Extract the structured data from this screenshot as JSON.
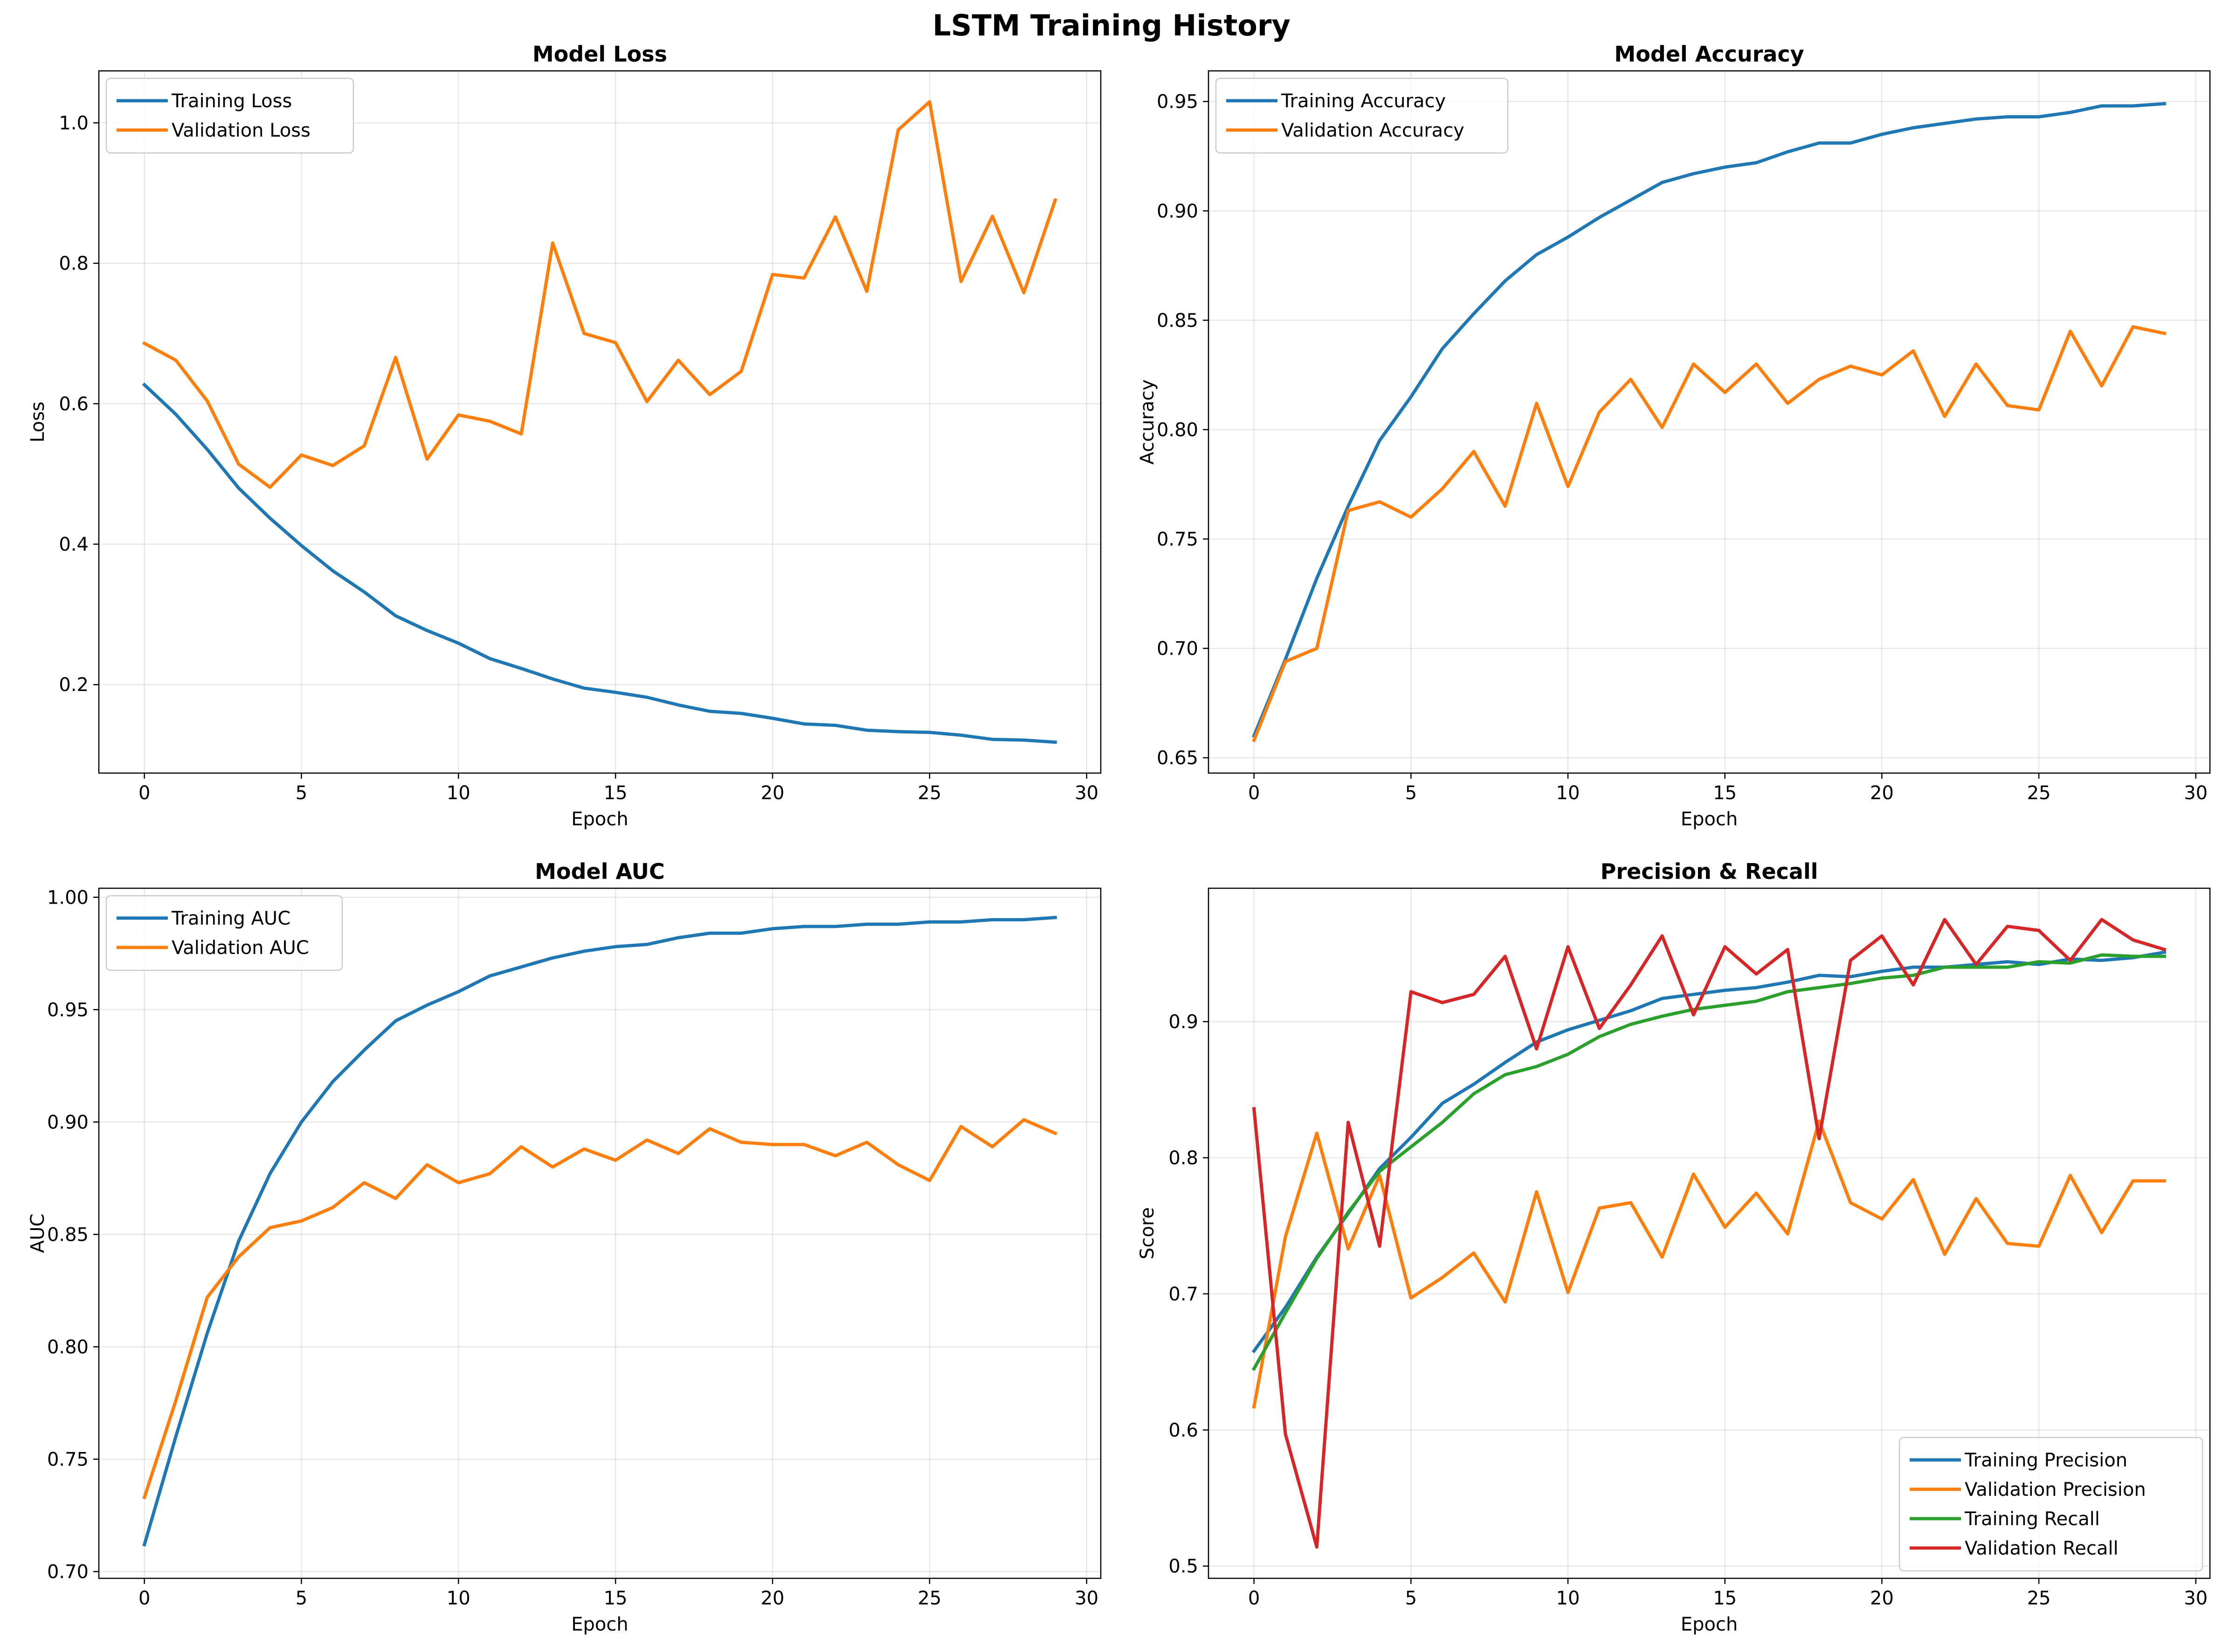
{
  "figure": {
    "title": "LSTM Training History"
  },
  "chart_data": [
    {
      "type": "line",
      "title": "Model Loss",
      "xlabel": "Epoch",
      "ylabel": "Loss",
      "xlim": [
        -1.45,
        30.45
      ],
      "ylim": [
        0.074,
        1.074
      ],
      "xticks": [
        0,
        5,
        10,
        15,
        20,
        25,
        30
      ],
      "yticks": [
        0.2,
        0.4,
        0.6,
        0.8,
        1.0
      ],
      "ytick_decimals": 1,
      "grid": true,
      "legend_loc": "upper-left",
      "x": [
        0,
        1,
        2,
        3,
        4,
        5,
        6,
        7,
        8,
        9,
        10,
        11,
        12,
        13,
        14,
        15,
        16,
        17,
        18,
        19,
        20,
        21,
        22,
        23,
        24,
        25,
        26,
        27,
        28,
        29
      ],
      "series": [
        {
          "name": "Training Loss",
          "color": "#1f77b4",
          "values": [
            0.627,
            0.585,
            0.535,
            0.48,
            0.437,
            0.398,
            0.362,
            0.332,
            0.298,
            0.277,
            0.259,
            0.237,
            0.223,
            0.208,
            0.195,
            0.189,
            0.182,
            0.171,
            0.162,
            0.159,
            0.152,
            0.144,
            0.142,
            0.135,
            0.133,
            0.132,
            0.128,
            0.122,
            0.121,
            0.118
          ]
        },
        {
          "name": "Validation Loss",
          "color": "#ff7f0e",
          "values": [
            0.686,
            0.662,
            0.604,
            0.514,
            0.481,
            0.527,
            0.512,
            0.54,
            0.666,
            0.521,
            0.584,
            0.575,
            0.557,
            0.829,
            0.7,
            0.687,
            0.603,
            0.662,
            0.613,
            0.646,
            0.784,
            0.779,
            0.866,
            0.76,
            0.99,
            1.03,
            0.774,
            0.867,
            0.758,
            0.89
          ]
        }
      ]
    },
    {
      "type": "line",
      "title": "Model Accuracy",
      "xlabel": "Epoch",
      "ylabel": "Accuracy",
      "xlim": [
        -1.45,
        30.45
      ],
      "ylim": [
        0.643,
        0.964
      ],
      "xticks": [
        0,
        5,
        10,
        15,
        20,
        25,
        30
      ],
      "yticks": [
        0.65,
        0.7,
        0.75,
        0.8,
        0.85,
        0.9,
        0.95
      ],
      "ytick_decimals": 2,
      "grid": true,
      "legend_loc": "upper-left",
      "x": [
        0,
        1,
        2,
        3,
        4,
        5,
        6,
        7,
        8,
        9,
        10,
        11,
        12,
        13,
        14,
        15,
        16,
        17,
        18,
        19,
        20,
        21,
        22,
        23,
        24,
        25,
        26,
        27,
        28,
        29
      ],
      "series": [
        {
          "name": "Training Accuracy",
          "color": "#1f77b4",
          "values": [
            0.66,
            0.695,
            0.732,
            0.765,
            0.795,
            0.815,
            0.837,
            0.853,
            0.868,
            0.88,
            0.888,
            0.897,
            0.905,
            0.913,
            0.917,
            0.92,
            0.922,
            0.927,
            0.931,
            0.931,
            0.935,
            0.938,
            0.94,
            0.942,
            0.943,
            0.943,
            0.945,
            0.948,
            0.948,
            0.949
          ]
        },
        {
          "name": "Validation Accuracy",
          "color": "#ff7f0e",
          "values": [
            0.658,
            0.694,
            0.7,
            0.763,
            0.767,
            0.76,
            0.773,
            0.79,
            0.765,
            0.812,
            0.774,
            0.808,
            0.823,
            0.801,
            0.83,
            0.817,
            0.83,
            0.812,
            0.823,
            0.829,
            0.825,
            0.836,
            0.806,
            0.83,
            0.811,
            0.809,
            0.845,
            0.82,
            0.847,
            0.844
          ]
        }
      ]
    },
    {
      "type": "line",
      "title": "Model AUC",
      "xlabel": "Epoch",
      "ylabel": "AUC",
      "xlim": [
        -1.45,
        30.45
      ],
      "ylim": [
        0.697,
        1.004
      ],
      "xticks": [
        0,
        5,
        10,
        15,
        20,
        25,
        30
      ],
      "yticks": [
        0.7,
        0.75,
        0.8,
        0.85,
        0.9,
        0.95,
        1.0
      ],
      "ytick_decimals": 2,
      "grid": true,
      "legend_loc": "upper-left",
      "x": [
        0,
        1,
        2,
        3,
        4,
        5,
        6,
        7,
        8,
        9,
        10,
        11,
        12,
        13,
        14,
        15,
        16,
        17,
        18,
        19,
        20,
        21,
        22,
        23,
        24,
        25,
        26,
        27,
        28,
        29
      ],
      "series": [
        {
          "name": "Training AUC",
          "color": "#1f77b4",
          "values": [
            0.712,
            0.76,
            0.806,
            0.847,
            0.877,
            0.9,
            0.918,
            0.932,
            0.945,
            0.952,
            0.958,
            0.965,
            0.969,
            0.973,
            0.976,
            0.978,
            0.979,
            0.982,
            0.984,
            0.984,
            0.986,
            0.987,
            0.987,
            0.988,
            0.988,
            0.989,
            0.989,
            0.99,
            0.99,
            0.991
          ]
        },
        {
          "name": "Validation AUC",
          "color": "#ff7f0e",
          "values": [
            0.733,
            0.776,
            0.822,
            0.84,
            0.853,
            0.856,
            0.862,
            0.873,
            0.866,
            0.881,
            0.873,
            0.877,
            0.889,
            0.88,
            0.888,
            0.883,
            0.892,
            0.886,
            0.897,
            0.891,
            0.89,
            0.89,
            0.885,
            0.891,
            0.881,
            0.874,
            0.898,
            0.889,
            0.901,
            0.895
          ]
        }
      ]
    },
    {
      "type": "line",
      "title": "Precision & Recall",
      "xlabel": "Epoch",
      "ylabel": "Score",
      "xlim": [
        -1.45,
        30.45
      ],
      "ylim": [
        0.491,
        0.998
      ],
      "xticks": [
        0,
        5,
        10,
        15,
        20,
        25,
        30
      ],
      "yticks": [
        0.5,
        0.6,
        0.7,
        0.8,
        0.9
      ],
      "ytick_decimals": 1,
      "grid": true,
      "legend_loc": "lower-right",
      "x": [
        0,
        1,
        2,
        3,
        4,
        5,
        6,
        7,
        8,
        9,
        10,
        11,
        12,
        13,
        14,
        15,
        16,
        17,
        18,
        19,
        20,
        21,
        22,
        23,
        24,
        25,
        26,
        27,
        28,
        29
      ],
      "series": [
        {
          "name": "Training Precision",
          "color": "#1f77b4",
          "values": [
            0.658,
            0.69,
            0.727,
            0.759,
            0.792,
            0.815,
            0.84,
            0.854,
            0.87,
            0.885,
            0.894,
            0.901,
            0.908,
            0.917,
            0.92,
            0.923,
            0.925,
            0.929,
            0.934,
            0.933,
            0.937,
            0.94,
            0.94,
            0.942,
            0.944,
            0.942,
            0.946,
            0.945,
            0.947,
            0.951
          ]
        },
        {
          "name": "Validation Precision",
          "color": "#ff7f0e",
          "values": [
            0.617,
            0.742,
            0.818,
            0.733,
            0.787,
            0.697,
            0.712,
            0.73,
            0.694,
            0.775,
            0.701,
            0.763,
            0.767,
            0.727,
            0.788,
            0.749,
            0.774,
            0.744,
            0.827,
            0.767,
            0.755,
            0.784,
            0.729,
            0.77,
            0.737,
            0.735,
            0.787,
            0.745,
            0.783,
            0.783
          ]
        },
        {
          "name": "Training Recall",
          "color": "#2ca02c",
          "values": [
            0.645,
            0.686,
            0.726,
            0.76,
            0.79,
            0.808,
            0.826,
            0.847,
            0.861,
            0.867,
            0.876,
            0.889,
            0.898,
            0.904,
            0.909,
            0.912,
            0.915,
            0.922,
            0.925,
            0.928,
            0.932,
            0.934,
            0.94,
            0.94,
            0.94,
            0.944,
            0.943,
            0.949,
            0.948,
            0.948
          ]
        },
        {
          "name": "Validation Recall",
          "color": "#d62728",
          "values": [
            0.836,
            0.597,
            0.514,
            0.826,
            0.735,
            0.922,
            0.914,
            0.92,
            0.948,
            0.88,
            0.955,
            0.895,
            0.927,
            0.963,
            0.905,
            0.955,
            0.935,
            0.953,
            0.814,
            0.945,
            0.963,
            0.927,
            0.975,
            0.942,
            0.97,
            0.967,
            0.945,
            0.975,
            0.96,
            0.953
          ]
        }
      ]
    }
  ]
}
